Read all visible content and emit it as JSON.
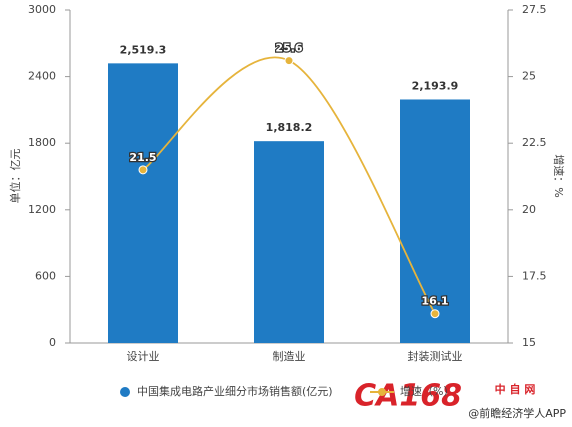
{
  "chart_data": {
    "type": "bar-line",
    "categories": [
      "设计业",
      "制造业",
      "封装测试业"
    ],
    "series": [
      {
        "name": "中国集成电路产业细分市场销售额(亿元)",
        "type": "bar",
        "color": "#1f7bc4",
        "values": [
          2519.3,
          1818.2,
          2193.9
        ],
        "value_labels": [
          "2,519.3",
          "1,818.2",
          "2,193.9"
        ]
      },
      {
        "name": "增速（%）",
        "type": "line",
        "axis": "y2",
        "color": "#e6b43c",
        "values": [
          21.5,
          25.6,
          16.1
        ]
      }
    ],
    "ylabel": "单位：亿元",
    "y2label": "增速：%",
    "ylim": [
      0,
      3000
    ],
    "yticks": [
      0,
      600,
      1200,
      1800,
      2400,
      3000
    ],
    "y2lim": [
      15,
      27.5
    ],
    "y2ticks": [
      15,
      17.5,
      20,
      22.5,
      25,
      27.5
    ],
    "grid": false
  },
  "logo": "CA168",
  "logo_sub": "中 自 网",
  "credit": "@前瞻经济学人APP"
}
